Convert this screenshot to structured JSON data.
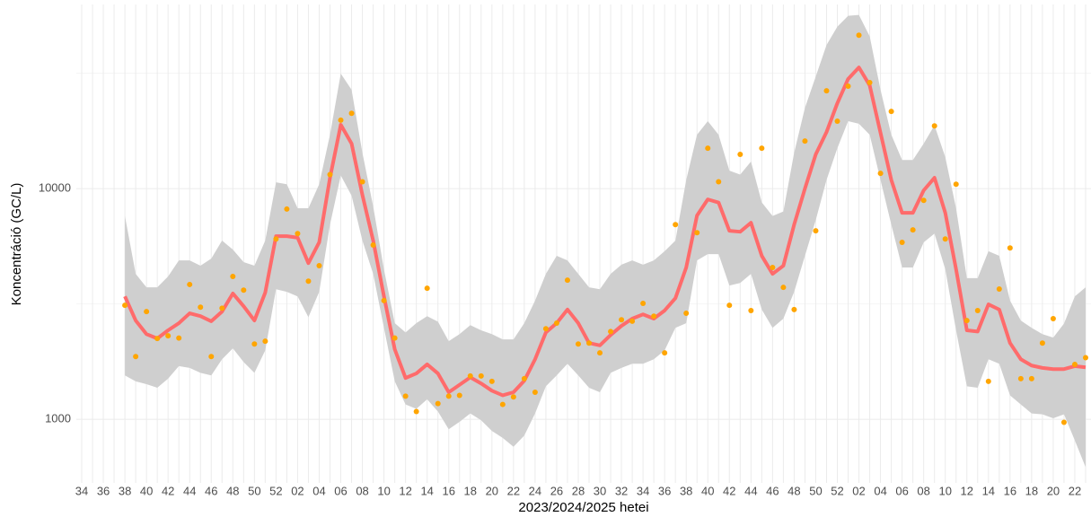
{
  "chart_data": {
    "type": "scatter_smooth",
    "xlabel": "2023/2024/2025 hetei",
    "ylabel": "Koncentráció (GC/L)",
    "log_y": true,
    "grid": true,
    "minor_grid": true,
    "ylim": [
      530,
      62800
    ],
    "yticks": [
      1000,
      10000
    ],
    "categories": [
      "34",
      null,
      "36",
      null,
      "38",
      null,
      "40",
      null,
      "42",
      null,
      "44",
      null,
      "46",
      null,
      "48",
      null,
      "50",
      null,
      "52",
      null,
      "02",
      null,
      "04",
      null,
      "06",
      null,
      "08",
      null,
      "10",
      null,
      "12",
      null,
      "14",
      null,
      "16",
      null,
      "18",
      null,
      "20",
      null,
      "22",
      null,
      "24",
      null,
      "26",
      null,
      "28",
      null,
      "30",
      null,
      "32",
      null,
      "34",
      null,
      "36",
      null,
      "38",
      null,
      "40",
      null,
      "42",
      null,
      "44",
      null,
      "46",
      null,
      "48",
      null,
      "50",
      null,
      "52",
      null,
      "02",
      null,
      "04",
      null,
      "06",
      null,
      "08",
      null,
      "10",
      null,
      "12",
      null,
      "14",
      null,
      "16",
      null,
      "18",
      null,
      "20",
      null,
      "22",
      null
    ],
    "series": [
      {
        "type": "band",
        "color": "#cfcfcf",
        "upper": [
          null,
          null,
          null,
          null,
          7610,
          4270,
          3730,
          3730,
          4160,
          4880,
          4880,
          4630,
          4970,
          5950,
          5440,
          4800,
          4630,
          5950,
          10640,
          10440,
          8220,
          8220,
          10440,
          17110,
          31500,
          26800,
          14300,
          8380,
          4460,
          2610,
          2380,
          2610,
          2800,
          2650,
          2180,
          2340,
          2560,
          2430,
          2340,
          2220,
          2220,
          2610,
          3270,
          4270,
          5110,
          4880,
          4270,
          3730,
          3660,
          4270,
          4680,
          4880,
          4680,
          4880,
          5350,
          5950,
          10900,
          17110,
          19590,
          17110,
          11960,
          11500,
          13100,
          8710,
          7610,
          7960,
          14300,
          22400,
          30600,
          41900,
          50300,
          56100,
          56600,
          45700,
          26800,
          17110,
          13300,
          13300,
          15670,
          18800,
          13700,
          8220,
          4090,
          4090,
          5350,
          5110,
          3270,
          2680,
          2490,
          2340,
          2260,
          2600,
          3410,
          3730
        ],
        "lower": [
          null,
          null,
          null,
          null,
          1550,
          1460,
          1420,
          1370,
          1500,
          1700,
          1670,
          1590,
          1550,
          1820,
          2030,
          1770,
          1590,
          1990,
          3660,
          3570,
          3410,
          2770,
          3570,
          6980,
          11400,
          9320,
          5950,
          4270,
          2490,
          1460,
          1160,
          1110,
          1220,
          1080,
          905,
          975,
          1060,
          990,
          890,
          830,
          760,
          850,
          1060,
          1390,
          1550,
          1740,
          1550,
          1370,
          1310,
          1590,
          1670,
          1740,
          1740,
          1820,
          1990,
          2490,
          2610,
          4880,
          5200,
          5200,
          3800,
          3900,
          4270,
          2990,
          2490,
          2730,
          3570,
          5110,
          7300,
          10900,
          14960,
          19590,
          19100,
          17110,
          10900,
          6980,
          4550,
          4550,
          5850,
          6380,
          4470,
          2430,
          1390,
          1370,
          1820,
          1740,
          1270,
          1160,
          1060,
          1050,
          1010,
          1050,
          810,
          620
        ]
      },
      {
        "type": "line",
        "color": "#ff6b6b",
        "values": [
          null,
          null,
          null,
          null,
          3410,
          2680,
          2340,
          2240,
          2430,
          2610,
          2880,
          2800,
          2660,
          2930,
          3510,
          3090,
          2680,
          3540,
          6220,
          6220,
          6130,
          4750,
          5850,
          11140,
          18900,
          15670,
          9390,
          5950,
          3410,
          2010,
          1510,
          1580,
          1730,
          1580,
          1310,
          1410,
          1520,
          1430,
          1330,
          1270,
          1310,
          1470,
          1820,
          2380,
          2610,
          2990,
          2610,
          2140,
          2090,
          2320,
          2540,
          2730,
          2850,
          2730,
          2960,
          3350,
          4550,
          7640,
          8980,
          8700,
          6560,
          6500,
          7110,
          5110,
          4270,
          4630,
          6980,
          10000,
          14070,
          17580,
          23440,
          29870,
          33500,
          27990,
          17450,
          10900,
          7850,
          7850,
          9820,
          11140,
          7850,
          4470,
          2430,
          2400,
          3150,
          2990,
          2140,
          1820,
          1710,
          1670,
          1650,
          1650,
          1700,
          1680
        ]
      },
      {
        "type": "scatter",
        "color": "#ffa500",
        "values": [
          null,
          null,
          null,
          null,
          3120,
          1870,
          2930,
          2240,
          2300,
          2250,
          3840,
          3060,
          1870,
          3030,
          4160,
          3630,
          2120,
          2180,
          6050,
          8150,
          6380,
          3970,
          4630,
          11500,
          19800,
          21200,
          10700,
          5690,
          3270,
          2250,
          1260,
          1080,
          3700,
          1170,
          1260,
          1270,
          1540,
          1540,
          1460,
          1160,
          1250,
          1500,
          1310,
          2470,
          2610,
          4010,
          2120,
          2140,
          1940,
          2400,
          2700,
          2660,
          3180,
          2800,
          1940,
          6980,
          2880,
          6440,
          14960,
          10700,
          3120,
          14070,
          2960,
          14960,
          4550,
          3730,
          2990,
          16070,
          6560,
          26540,
          19590,
          27800,
          46200,
          28800,
          11640,
          21600,
          5850,
          6620,
          8890,
          18700,
          6050,
          10440,
          2680,
          2960,
          1460,
          3670,
          5530,
          1500,
          1500,
          2140,
          2730,
          970,
          1730,
          1850
        ]
      }
    ]
  }
}
